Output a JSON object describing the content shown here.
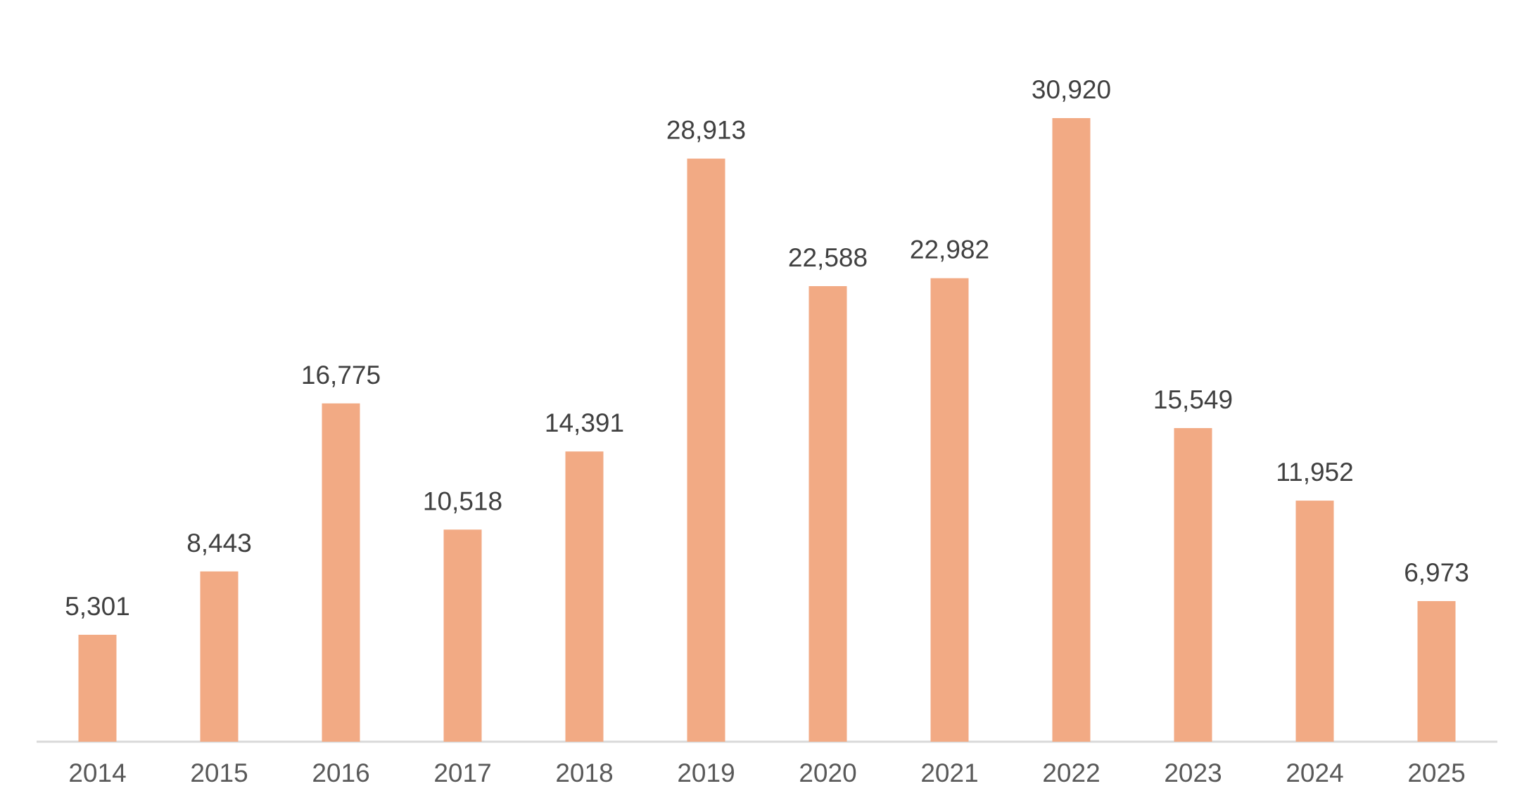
{
  "chart_data": {
    "type": "bar",
    "title": "",
    "xlabel": "",
    "ylabel": "",
    "categories": [
      "2014",
      "2015",
      "2016",
      "2017",
      "2018",
      "2019",
      "2020",
      "2021",
      "2022",
      "2023",
      "2024",
      "2025"
    ],
    "values": [
      5301,
      8443,
      16775,
      10518,
      14391,
      28913,
      22588,
      22982,
      30920,
      15549,
      11952,
      6973
    ],
    "data_labels": [
      "5,301",
      "8,443",
      "16,775",
      "10,518",
      "14,391",
      "28,913",
      "22,588",
      "22,982",
      "30,920",
      "15,549",
      "11,952",
      "6,973"
    ],
    "ylim": [
      0,
      30920
    ],
    "grid": false,
    "legend": "none",
    "colors": {
      "bar": "#F2AA84",
      "axis": "#D9D9D9",
      "label_text": "#404040",
      "tick_text": "#595959"
    }
  }
}
